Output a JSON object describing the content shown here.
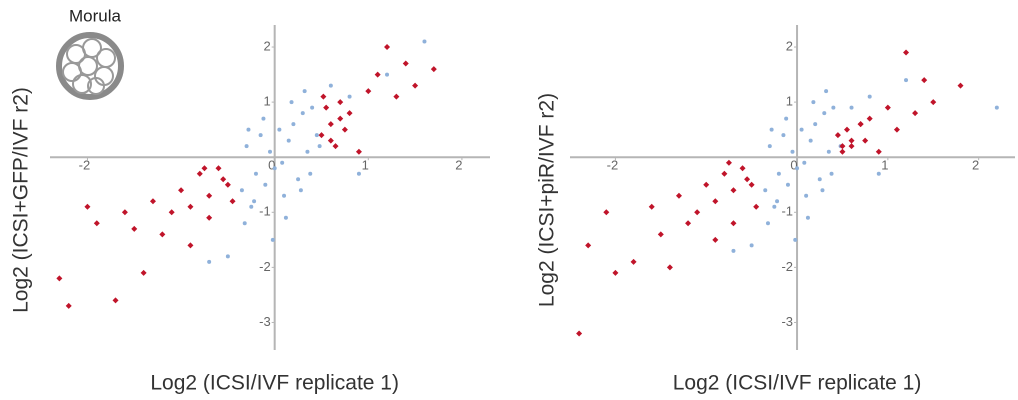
{
  "annotation": "Morula",
  "chart_data": [
    {
      "type": "scatter",
      "xlabel": "Log2 (ICSI/IVF replicate 1)",
      "ylabel": "Log2 (ICSI+GFP/IVF r2)",
      "xlim": [
        -2.4,
        2.3
      ],
      "ylim": [
        -3.5,
        2.4
      ],
      "xticks": [
        -2,
        0,
        1,
        2
      ],
      "yticks": [
        -3,
        -2,
        -1,
        1,
        2
      ],
      "series": [
        {
          "color": "#8fb1da",
          "marker": "circle",
          "x": [
            -0.35,
            -0.3,
            -0.25,
            -0.2,
            -0.15,
            -0.1,
            -0.05,
            0,
            0.05,
            0.1,
            0.15,
            0.2,
            0.25,
            0.3,
            0.35,
            0.4,
            0.45,
            -0.32,
            -0.22,
            -0.12,
            -0.02,
            0.08,
            0.18,
            0.28,
            0.38,
            0.48,
            -0.28,
            0.12,
            0.32,
            0.6,
            0.8,
            1.2,
            1.6,
            0.9,
            -0.5,
            -0.7
          ],
          "values": [
            -0.6,
            0.2,
            -0.9,
            -0.3,
            0.4,
            -0.5,
            0.1,
            -0.2,
            0.5,
            -0.7,
            0.3,
            0.6,
            -0.4,
            0.8,
            0.1,
            0.9,
            0.4,
            -1.2,
            -0.8,
            0.7,
            -1.5,
            -0.1,
            1.0,
            -0.6,
            -0.3,
            0.2,
            0.5,
            -1.1,
            1.2,
            1.3,
            1.1,
            1.5,
            2.1,
            -0.3,
            -1.8,
            -1.9
          ]
        },
        {
          "color": "#c0142a",
          "marker": "diamond",
          "x": [
            -2.3,
            -2.2,
            -2.0,
            -1.9,
            -1.7,
            -1.6,
            -1.5,
            -1.3,
            -1.2,
            -1.1,
            -1.0,
            -0.9,
            -0.8,
            -0.7,
            -0.6,
            -0.5,
            -0.45,
            -0.9,
            -0.7,
            -0.55,
            -1.4,
            -0.75,
            0.5,
            0.55,
            0.6,
            0.65,
            0.7,
            0.75,
            0.8,
            0.9,
            1.0,
            1.1,
            1.2,
            1.3,
            1.4,
            1.5,
            1.7,
            0.6,
            0.7,
            0.52
          ],
          "values": [
            -2.2,
            -2.7,
            -0.9,
            -1.2,
            -2.6,
            -1.0,
            -1.3,
            -0.8,
            -1.4,
            -1.0,
            -0.6,
            -0.9,
            -0.3,
            -0.7,
            -0.2,
            -0.5,
            -0.8,
            -1.6,
            -1.1,
            -0.4,
            -2.1,
            -0.2,
            0.4,
            0.9,
            0.6,
            0.2,
            1.0,
            0.5,
            0.8,
            0.1,
            1.2,
            1.5,
            2.0,
            1.1,
            1.7,
            1.3,
            1.6,
            0.3,
            0.7,
            1.1
          ]
        }
      ]
    },
    {
      "type": "scatter",
      "xlabel": "Log2 (ICSI/IVF replicate 1)",
      "ylabel": "Log2 (ICSI+piR/IVF r2)",
      "xlim": [
        -2.5,
        2.4
      ],
      "ylim": [
        -3.5,
        2.4
      ],
      "xticks": [
        -2,
        0,
        1,
        2
      ],
      "yticks": [
        -3,
        -2,
        -1,
        1,
        2
      ],
      "series": [
        {
          "color": "#8fb1da",
          "marker": "circle",
          "x": [
            -0.35,
            -0.3,
            -0.25,
            -0.2,
            -0.15,
            -0.1,
            -0.05,
            0,
            0.05,
            0.1,
            0.15,
            0.2,
            0.25,
            0.3,
            0.35,
            0.4,
            0.45,
            -0.32,
            -0.22,
            -0.12,
            -0.02,
            0.08,
            0.18,
            0.28,
            0.38,
            0.48,
            -0.28,
            0.12,
            0.32,
            0.6,
            0.8,
            1.2,
            2.2,
            0.9,
            -0.5,
            -0.7
          ],
          "values": [
            -0.6,
            0.2,
            -0.9,
            -0.3,
            0.4,
            -0.5,
            0.1,
            -0.2,
            0.5,
            -0.7,
            0.3,
            0.6,
            -0.4,
            0.8,
            0.1,
            0.9,
            0.4,
            -1.2,
            -0.8,
            0.7,
            -1.5,
            -0.1,
            1.0,
            -0.6,
            -0.3,
            0.2,
            0.5,
            -1.1,
            1.2,
            0.9,
            1.1,
            1.4,
            0.9,
            -0.3,
            -1.6,
            -1.7
          ]
        },
        {
          "color": "#c0142a",
          "marker": "diamond",
          "x": [
            -2.4,
            -2.3,
            -2.1,
            -2.0,
            -1.8,
            -1.6,
            -1.5,
            -1.3,
            -1.2,
            -1.1,
            -1.0,
            -0.9,
            -0.8,
            -0.7,
            -0.6,
            -0.5,
            -0.45,
            -0.9,
            -0.7,
            -0.55,
            -1.4,
            -0.75,
            0.45,
            0.5,
            0.55,
            0.6,
            0.7,
            0.75,
            0.8,
            0.9,
            1.0,
            1.1,
            1.2,
            1.3,
            1.4,
            1.5,
            1.8,
            0.6,
            0.7,
            0.5
          ],
          "values": [
            -3.2,
            -1.6,
            -1.0,
            -2.1,
            -1.9,
            -0.9,
            -1.4,
            -0.7,
            -1.2,
            -1.0,
            -0.5,
            -0.8,
            -0.3,
            -0.6,
            -0.2,
            -0.5,
            -0.9,
            -1.5,
            -1.2,
            -0.4,
            -2.0,
            -0.1,
            0.4,
            0.1,
            0.5,
            0.2,
            0.6,
            0.3,
            0.7,
            0.1,
            0.9,
            0.5,
            1.9,
            0.8,
            1.4,
            1.0,
            1.3,
            0.3,
            0.6,
            0.2
          ]
        }
      ]
    }
  ]
}
